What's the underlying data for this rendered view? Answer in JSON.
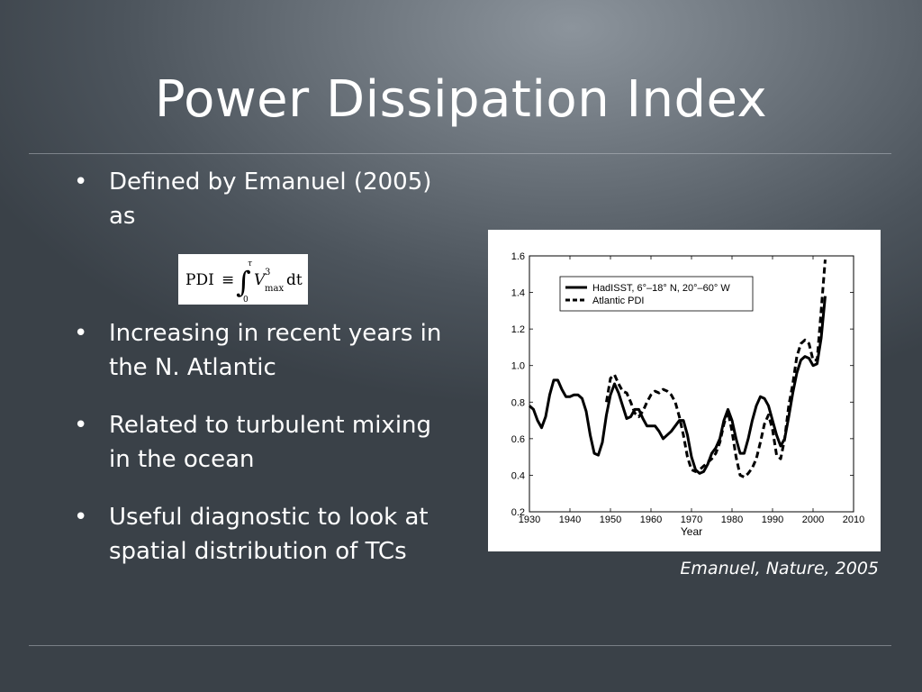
{
  "slide": {
    "title": "Power Dissipation Index",
    "bullets": [
      {
        "text": "Defined by Emanuel (2005) as"
      },
      {
        "text": "Increasing in recent years in the N. Atlantic"
      },
      {
        "text": "Related to turbulent mixing in the ocean"
      },
      {
        "text": "Useful diagnostic to look at spatial distribution of TCs"
      }
    ],
    "formula": {
      "lhs": "PDI",
      "op": "≡",
      "int_sym": "∫",
      "upper": "τ",
      "lower": "0",
      "var": "V",
      "sup": "3",
      "sub": "max",
      "tail": "dt"
    },
    "caption": "Emanuel, Nature, 2005"
  },
  "chart_data": {
    "type": "line",
    "xlabel": "Year",
    "ylabel": "",
    "xlim": [
      1930,
      2010
    ],
    "ylim": [
      0.2,
      1.6
    ],
    "xticks": [
      1930,
      1940,
      1950,
      1960,
      1970,
      1980,
      1990,
      2000,
      2010
    ],
    "yticks": [
      0.2,
      0.4,
      0.6,
      0.8,
      1.0,
      1.2,
      1.4,
      1.6
    ],
    "ytick_labels": [
      "0.2",
      "0.4",
      "0.6",
      "0.8",
      "1.0",
      "1.2",
      "1.4",
      "1.6"
    ],
    "legend_position": "top-right",
    "series": [
      {
        "name": "HadISST, 6°–18° N, 20°–60° W",
        "style": "solid",
        "x": [
          1930,
          1931,
          1932,
          1933,
          1934,
          1935,
          1936,
          1937,
          1938,
          1939,
          1940,
          1941,
          1942,
          1943,
          1944,
          1945,
          1946,
          1947,
          1948,
          1949,
          1950,
          1951,
          1952,
          1953,
          1954,
          1955,
          1956,
          1957,
          1958,
          1959,
          1960,
          1961,
          1962,
          1963,
          1964,
          1965,
          1966,
          1967,
          1968,
          1969,
          1970,
          1971,
          1972,
          1973,
          1974,
          1975,
          1976,
          1977,
          1978,
          1979,
          1980,
          1981,
          1982,
          1983,
          1984,
          1985,
          1986,
          1987,
          1988,
          1989,
          1990,
          1991,
          1992,
          1993,
          1994,
          1995,
          1996,
          1997,
          1998,
          1999,
          2000,
          2001,
          2002,
          2003
        ],
        "y": [
          0.78,
          0.76,
          0.7,
          0.66,
          0.72,
          0.84,
          0.92,
          0.92,
          0.87,
          0.83,
          0.83,
          0.84,
          0.84,
          0.82,
          0.75,
          0.62,
          0.52,
          0.51,
          0.58,
          0.73,
          0.84,
          0.9,
          0.85,
          0.78,
          0.71,
          0.72,
          0.76,
          0.76,
          0.71,
          0.67,
          0.67,
          0.67,
          0.64,
          0.6,
          0.62,
          0.64,
          0.67,
          0.7,
          0.7,
          0.62,
          0.5,
          0.43,
          0.41,
          0.42,
          0.46,
          0.52,
          0.55,
          0.6,
          0.7,
          0.76,
          0.7,
          0.6,
          0.52,
          0.52,
          0.6,
          0.7,
          0.78,
          0.83,
          0.82,
          0.78,
          0.7,
          0.62,
          0.56,
          0.6,
          0.72,
          0.85,
          0.96,
          1.03,
          1.05,
          1.04,
          1.0,
          1.01,
          1.15,
          1.38
        ]
      },
      {
        "name": "Atlantic PDI",
        "style": "dashed",
        "x": [
          1949,
          1950,
          1951,
          1952,
          1953,
          1954,
          1955,
          1956,
          1957,
          1958,
          1959,
          1960,
          1961,
          1962,
          1963,
          1964,
          1965,
          1966,
          1967,
          1968,
          1969,
          1970,
          1971,
          1972,
          1973,
          1974,
          1975,
          1976,
          1977,
          1978,
          1979,
          1980,
          1981,
          1982,
          1983,
          1984,
          1985,
          1986,
          1987,
          1988,
          1989,
          1990,
          1991,
          1992,
          1993,
          1994,
          1995,
          1996,
          1997,
          1998,
          1999,
          2000,
          2001,
          2002,
          2003
        ],
        "y": [
          0.8,
          0.93,
          0.95,
          0.9,
          0.86,
          0.85,
          0.8,
          0.74,
          0.72,
          0.75,
          0.8,
          0.84,
          0.86,
          0.85,
          0.87,
          0.86,
          0.84,
          0.8,
          0.72,
          0.62,
          0.5,
          0.43,
          0.42,
          0.43,
          0.45,
          0.47,
          0.49,
          0.52,
          0.58,
          0.68,
          0.75,
          0.64,
          0.5,
          0.4,
          0.39,
          0.41,
          0.44,
          0.49,
          0.58,
          0.68,
          0.73,
          0.65,
          0.51,
          0.49,
          0.6,
          0.78,
          0.9,
          1.05,
          1.12,
          1.14,
          1.12,
          1.03,
          1.03,
          1.3,
          1.58
        ]
      }
    ]
  }
}
